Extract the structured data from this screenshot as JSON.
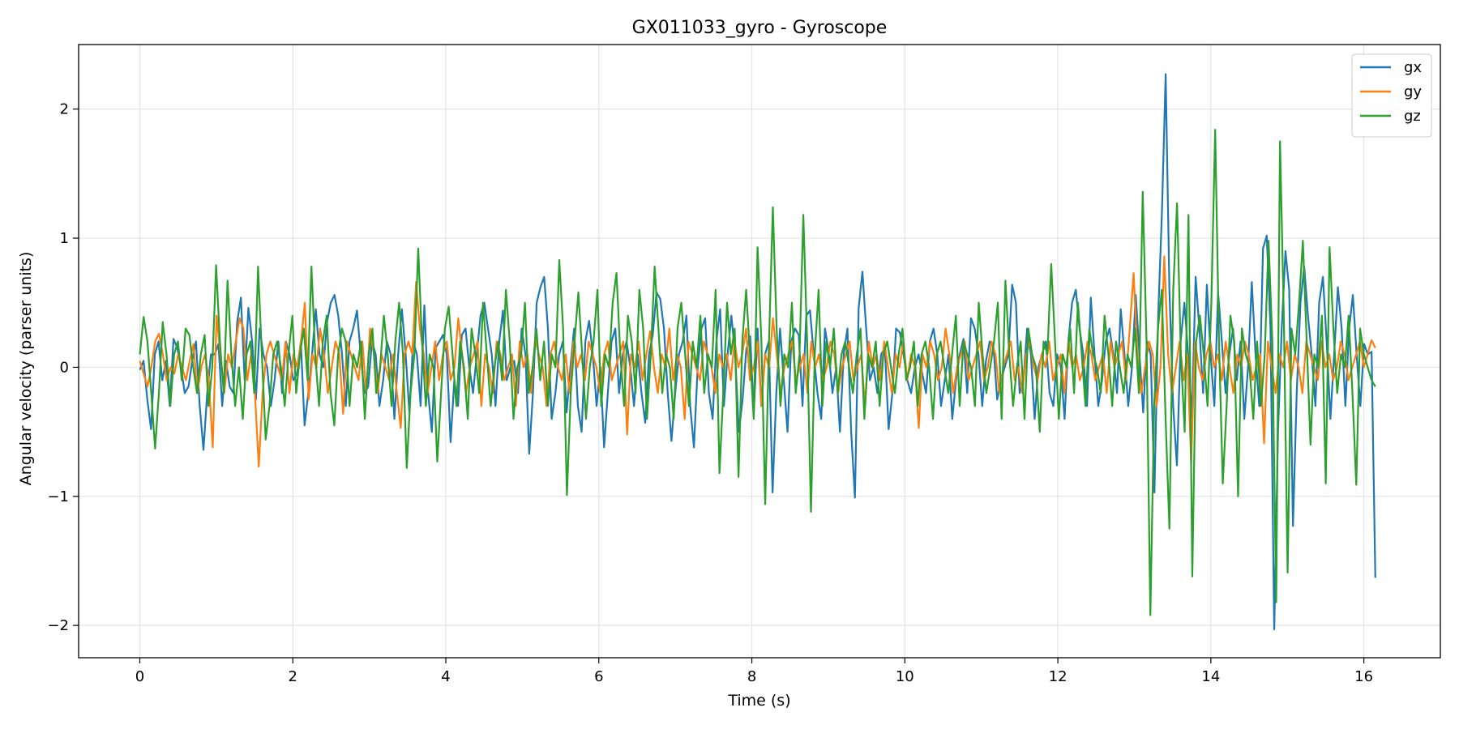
{
  "chart_data": {
    "type": "line",
    "title": "GX011033_gyro - Gyroscope",
    "xlabel": "Time (s)",
    "ylabel": "Angular velocity (parser units)",
    "xlim": [
      -0.8,
      17.0
    ],
    "ylim": [
      -2.25,
      2.5
    ],
    "xticks": [
      0,
      2,
      4,
      6,
      8,
      10,
      12,
      14,
      16
    ],
    "yticks": [
      -2,
      -1,
      0,
      1,
      2
    ],
    "xtick_labels": [
      "0",
      "2",
      "4",
      "6",
      "8",
      "10",
      "12",
      "14",
      "16"
    ],
    "ytick_labels": [
      "−2",
      "−1",
      "0",
      "1",
      "2"
    ],
    "grid": true,
    "legend_position": "top-right",
    "x": {
      "start": 0,
      "end": 16.15,
      "step": 0.05
    },
    "series": [
      {
        "name": "gx",
        "color": "#1f77b4",
        "values": [
          -0.02,
          0.05,
          -0.25,
          -0.48,
          0.1,
          0.2,
          -0.1,
          0.05,
          -0.3,
          0.22,
          0.15,
          0.0,
          -0.2,
          -0.15,
          0.05,
          0.2,
          -0.3,
          -0.64,
          -0.2,
          0.1,
          0.1,
          0.18,
          -0.3,
          0.05,
          -0.15,
          -0.2,
          0.35,
          0.54,
          -0.1,
          0.46,
          0.2,
          -0.25,
          0.3,
          0.1,
          0.0,
          -0.3,
          -0.1,
          0.2,
          -0.2,
          0.2,
          0.1,
          -0.1,
          -0.05,
          0.2,
          -0.45,
          -0.2,
          0.1,
          0.45,
          0.1,
          0.0,
          0.35,
          0.5,
          0.56,
          0.4,
          0.1,
          -0.3,
          0.2,
          0.3,
          0.44,
          0.1,
          -0.2,
          -0.15,
          0.2,
          0.1,
          -0.3,
          -0.1,
          0.2,
          0.1,
          -0.4,
          0.1,
          0.45,
          0.1,
          -0.35,
          0.2,
          0.1,
          -0.3,
          0.48,
          -0.2,
          -0.5,
          0.15,
          0.2,
          0.25,
          0.1,
          -0.58,
          -0.1,
          -0.3,
          0.25,
          0.3,
          0.0,
          -0.2,
          0.1,
          0.4,
          0.5,
          0.3,
          0.1,
          -0.3,
          0.2,
          0.44,
          -0.1,
          0.0,
          0.05,
          -0.2,
          0.3,
          0.1,
          -0.67,
          -0.2,
          0.5,
          0.62,
          0.7,
          0.3,
          -0.4,
          -0.2,
          0.1,
          0.2,
          -0.35,
          0.0,
          0.3,
          -0.3,
          -0.5,
          0.2,
          0.36,
          0.1,
          -0.3,
          0.0,
          -0.62,
          -0.2,
          0.2,
          0.3,
          -0.2,
          0.1,
          0.2,
          0.0,
          -0.3,
          0.1,
          -0.2,
          -0.43,
          0.1,
          0.25,
          0.58,
          0.53,
          0.3,
          -0.2,
          -0.57,
          -0.2,
          0.1,
          0.2,
          0.4,
          -0.3,
          -0.62,
          0.0,
          0.3,
          0.38,
          -0.2,
          -0.4,
          0.2,
          0.45,
          -0.3,
          0.1,
          0.4,
          0.1,
          -0.5,
          -0.25,
          0.14,
          0.24,
          -0.35,
          0.3,
          -0.3,
          0.1,
          0.2,
          -0.97,
          -0.2,
          0.3,
          -0.1,
          -0.5,
          0.2,
          0.3,
          0.25,
          -0.3,
          0.4,
          0.44,
          0.1,
          -0.2,
          -0.4,
          0.3,
          0.12,
          -0.2,
          0.0,
          -0.5,
          0.1,
          0.3,
          -0.5,
          -1.01,
          0.46,
          0.74,
          0.3,
          -0.1,
          0.0,
          -0.2,
          0.1,
          0.15,
          -0.48,
          -0.2,
          0.3,
          0.27,
          0.1,
          -0.1,
          -0.2,
          0.0,
          0.1,
          -0.05,
          -0.2,
          0.2,
          0.3,
          0.1,
          -0.3,
          -0.1,
          0.1,
          -0.4,
          -0.1,
          0.1,
          0.22,
          -0.2,
          0.38,
          0.3,
          0.1,
          -0.3,
          0.05,
          0.2,
          0.16,
          -0.25,
          -0.1,
          0.0,
          0.1,
          0.64,
          0.5,
          -0.2,
          -0.1,
          0.3,
          0.1,
          -0.4,
          0.0,
          0.1,
          0.2,
          -0.2,
          -0.3,
          0.1,
          0.0,
          -0.4,
          0.2,
          0.5,
          0.6,
          0.3,
          0.1,
          -0.3,
          0.54,
          0.1,
          -0.3,
          -0.1,
          0.2,
          0.3,
          0.1,
          -0.2,
          0.45,
          0.1,
          -0.3,
          0.0,
          0.56,
          0.1,
          -0.35,
          0.2,
          0.1,
          -0.97,
          0.4,
          1.2,
          2.27,
          0.6,
          -0.3,
          -0.76,
          0.2,
          0.5,
          0.1,
          -0.4,
          0.7,
          0.3,
          -0.2,
          0.64,
          0.1,
          -0.3,
          0.58,
          0.2,
          -0.2,
          0.1,
          0.3,
          -0.1,
          0.2,
          -0.4,
          0.0,
          0.66,
          0.1,
          -0.3,
          0.92,
          1.02,
          0.3,
          -2.03,
          -0.5,
          0.3,
          0.9,
          0.6,
          -1.23,
          -0.2,
          0.5,
          0.78,
          0.4,
          0.1,
          -0.3,
          0.5,
          0.7,
          0.2,
          -0.4,
          0.1,
          0.62,
          0.3,
          -0.3,
          0.3,
          0.56,
          0.1,
          -0.3,
          0.18,
          0.1,
          0.12,
          -1.63
        ]
      },
      {
        "name": "gy",
        "color": "#ff7f0e",
        "values": [
          0.05,
          -0.05,
          -0.15,
          0.0,
          0.2,
          0.26,
          0.1,
          -0.1,
          0.0,
          -0.05,
          0.1,
          0.0,
          -0.1,
          0.05,
          0.18,
          -0.2,
          0.0,
          0.1,
          -0.1,
          -0.62,
          0.4,
          0.1,
          -0.2,
          0.1,
          0.0,
          0.2,
          0.38,
          0.3,
          -0.1,
          0.1,
          -0.2,
          -0.77,
          -0.2,
          0.1,
          0.2,
          0.1,
          0.0,
          -0.1,
          0.2,
          -0.2,
          0.1,
          0.0,
          0.2,
          0.5,
          -0.25,
          0.1,
          0.0,
          0.3,
          0.1,
          -0.2,
          0.0,
          0.2,
          0.1,
          -0.36,
          0.2,
          0.1,
          0.0,
          -0.1,
          0.2,
          -0.2,
          0.3,
          0.1,
          -0.2,
          0.1,
          0.0,
          -0.1,
          0.1,
          -0.2,
          -0.47,
          0.1,
          0.2,
          0.1,
          0.66,
          0.3,
          0.1,
          -0.2,
          0.0,
          0.2,
          -0.1,
          0.1,
          0.2,
          -0.1,
          0.0,
          0.38,
          0.1,
          -0.2,
          0.0,
          0.1,
          0.2,
          -0.3,
          0.1,
          0.0,
          -0.2,
          0.2,
          0.1,
          -0.1,
          0.0,
          0.1,
          -0.3,
          0.2,
          0.0,
          0.1,
          -0.2,
          0.22,
          0.1,
          0.0,
          -0.3,
          0.1,
          0.2,
          0.0,
          -0.1,
          0.1,
          -0.2,
          0.2,
          0.0,
          0.1,
          -0.1,
          0.2,
          0.1,
          0.0,
          -0.2,
          0.1,
          0.2,
          -0.1,
          0.0,
          0.1,
          0.2,
          -0.52,
          0.1,
          0.0,
          0.2,
          -0.1,
          0.1,
          0.28,
          0.0,
          -0.2,
          0.1,
          0.0,
          0.3,
          -0.1,
          0.1,
          0.0,
          -0.4,
          0.2,
          0.1,
          0.0,
          -0.1,
          0.2,
          0.1,
          0.0,
          -0.2,
          0.1,
          0.0,
          0.1,
          -0.1,
          0.2,
          0.0,
          0.1,
          0.3,
          -0.1,
          0.0,
          0.2,
          -0.3,
          0.1,
          0.0,
          0.38,
          0.1,
          -0.2,
          0.0,
          0.1,
          0.2,
          -0.1,
          0.0,
          0.1,
          -0.2,
          0.2,
          0.0,
          0.1,
          -0.1,
          0.0,
          0.2,
          0.1,
          -0.2,
          0.0,
          0.1,
          0.2,
          -0.1,
          0.0,
          0.1,
          -0.3,
          0.2,
          0.0,
          0.1,
          -0.1,
          0.2,
          0.0,
          -0.2,
          0.1,
          0.0,
          0.2,
          -0.1,
          0.1,
          0.0,
          -0.47,
          0.1,
          0.0,
          0.2,
          0.1,
          -0.1,
          0.0,
          0.3,
          0.1,
          -0.2,
          0.0,
          0.1,
          0.2,
          -0.1,
          0.0,
          0.1,
          0.2,
          -0.1,
          0.0,
          0.2,
          0.1,
          -0.2,
          0.0,
          0.1,
          0.2,
          -0.1,
          0.0,
          -0.2,
          0.1,
          0.2,
          0.0,
          -0.1,
          0.1,
          0.0,
          0.2,
          -0.1,
          0.0,
          0.1,
          -0.2,
          0.2,
          0.0,
          0.1,
          -0.1,
          0.0,
          0.2,
          0.1,
          -0.1,
          0.0,
          0.1,
          -0.2,
          0.2,
          0.0,
          0.1,
          0.2,
          -0.1,
          0.3,
          0.73,
          0.1,
          -0.2,
          0.0,
          0.2,
          0.1,
          -0.3,
          0.0,
          0.86,
          0.1,
          -0.2,
          0.0,
          0.2,
          -0.1,
          0.1,
          -0.74,
          0.2,
          0.0,
          -0.1,
          0.1,
          0.2,
          0.0,
          0.1,
          -0.1,
          0.2,
          0.0,
          -0.2,
          0.1,
          0.0,
          0.2,
          0.1,
          -0.1,
          0.0,
          0.1,
          -0.59,
          0.2,
          0.0,
          -0.2,
          0.1,
          0.0,
          0.2,
          -0.1,
          0.1,
          0.0,
          -0.2,
          0.2,
          0.1,
          0.0,
          -0.1,
          0.2,
          0.0,
          0.1,
          -0.1,
          0.0,
          0.2,
          0.1,
          -0.1,
          0.0,
          0.1,
          0.2,
          0.0,
          0.1,
          0.21,
          0.15
        ]
      },
      {
        "name": "gz",
        "color": "#2ca02c",
        "values": [
          0.1,
          0.39,
          0.2,
          -0.2,
          -0.63,
          -0.2,
          0.35,
          0.1,
          -0.3,
          0.1,
          0.2,
          -0.1,
          0.3,
          0.25,
          0.0,
          -0.2,
          0.1,
          0.25,
          -0.3,
          0.0,
          0.79,
          0.2,
          -0.2,
          0.67,
          0.1,
          -0.3,
          0.0,
          -0.4,
          0.1,
          0.2,
          -0.2,
          0.78,
          0.1,
          -0.56,
          -0.3,
          0.1,
          0.2,
          0.0,
          -0.3,
          0.1,
          0.4,
          -0.2,
          0.1,
          0.3,
          -0.1,
          0.78,
          0.1,
          -0.3,
          0.2,
          0.4,
          -0.2,
          -0.45,
          0.1,
          0.3,
          0.2,
          -0.3,
          0.1,
          0.0,
          0.2,
          -0.4,
          0.1,
          0.3,
          -0.2,
          0.0,
          0.4,
          0.1,
          -0.3,
          0.2,
          0.5,
          0.1,
          -0.78,
          -0.2,
          0.1,
          0.92,
          0.2,
          -0.3,
          0.1,
          0.0,
          -0.73,
          -0.2,
          0.3,
          0.47,
          0.1,
          -0.3,
          0.2,
          0.0,
          -0.4,
          0.3,
          0.1,
          -0.2,
          0.5,
          0.1,
          -0.3,
          0.0,
          0.2,
          -0.1,
          0.6,
          0.2,
          -0.4,
          0.0,
          0.1,
          0.5,
          -0.2,
          0.0,
          0.3,
          -0.1,
          0.2,
          -0.3,
          0.1,
          0.0,
          0.83,
          0.3,
          -0.99,
          -0.2,
          0.2,
          0.58,
          0.1,
          -0.4,
          0.0,
          0.2,
          0.6,
          -0.3,
          0.1,
          0.0,
          0.5,
          0.73,
          0.1,
          -0.3,
          0.4,
          0.2,
          -0.2,
          0.6,
          0.3,
          -0.4,
          0.1,
          0.78,
          0.3,
          -0.2,
          0.1,
          0.0,
          -0.4,
          0.3,
          0.5,
          0.1,
          -0.3,
          0.2,
          0.0,
          0.4,
          -0.2,
          0.1,
          0.0,
          0.6,
          -0.82,
          -0.2,
          0.5,
          0.1,
          0.3,
          -0.85,
          0.2,
          0.6,
          0.1,
          -0.4,
          0.93,
          0.2,
          -1.06,
          0.2,
          1.24,
          0.3,
          -0.3,
          0.1,
          0.0,
          0.5,
          -0.2,
          0.1,
          1.18,
          0.2,
          -1.12,
          0.1,
          0.6,
          -0.3,
          0.2,
          0.0,
          0.3,
          -0.2,
          0.1,
          0.2,
          0.0,
          -0.2,
          0.1,
          0.3,
          -0.4,
          0.1,
          0.0,
          0.2,
          -0.3,
          0.1,
          0.2,
          0.0,
          -0.2,
          0.1,
          0.3,
          -0.1,
          0.0,
          0.2,
          -0.3,
          0.1,
          0.2,
          0.0,
          -0.4,
          0.1,
          0.2,
          0.0,
          -0.2,
          0.1,
          0.4,
          -0.3,
          0.2,
          0.1,
          0.0,
          -0.3,
          0.5,
          0.1,
          -0.2,
          0.0,
          0.2,
          0.5,
          -0.4,
          0.67,
          0.1,
          -0.3,
          0.0,
          0.2,
          -0.4,
          0.3,
          0.1,
          0.0,
          -0.5,
          0.2,
          0.1,
          0.8,
          0.2,
          -0.4,
          0.1,
          0.0,
          0.3,
          -0.2,
          0.5,
          0.1,
          -0.3,
          0.3,
          0.1,
          0.0,
          -0.2,
          0.4,
          0.1,
          -0.3,
          0.2,
          0.0,
          -0.2,
          0.1,
          0.0,
          0.3,
          -0.2,
          1.36,
          0.2,
          -1.92,
          -0.3,
          0.3,
          0.6,
          -0.4,
          -1.25,
          0.6,
          1.27,
          0.1,
          -0.5,
          1.18,
          -1.62,
          0.2,
          0.4,
          0.1,
          -0.3,
          0.5,
          1.84,
          0.2,
          -0.9,
          -0.3,
          0.4,
          0.2,
          -1.0,
          0.3,
          0.1,
          0.0,
          -0.4,
          0.2,
          -0.3,
          0.1,
          0.98,
          0.2,
          -1.82,
          1.75,
          0.4,
          -1.59,
          0.3,
          0.1,
          0.5,
          0.98,
          0.2,
          -0.6,
          0.1,
          0.0,
          0.4,
          -0.9,
          0.93,
          0.3,
          -0.2,
          0.1,
          0.0,
          0.4,
          -0.2,
          -0.91,
          0.3,
          0.1,
          0.0,
          -0.1,
          -0.15
        ]
      }
    ]
  }
}
